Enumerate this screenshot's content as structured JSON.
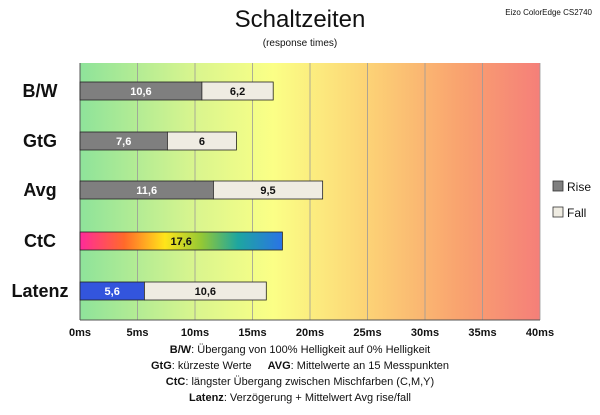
{
  "header": {
    "title": "Schaltzeiten",
    "subtitle": "(response times)",
    "brand": "Eizo ColorEdge CS2740"
  },
  "chart_data": {
    "type": "bar",
    "orientation": "horizontal",
    "stacked": true,
    "title": "Schaltzeiten",
    "subtitle": "(response times)",
    "categories": [
      "B/W",
      "GtG",
      "Avg",
      "CtC",
      "Latenz"
    ],
    "x_ticks": [
      "0ms",
      "5ms",
      "10ms",
      "15ms",
      "20ms",
      "25ms",
      "30ms",
      "35ms",
      "40ms"
    ],
    "xlim": [
      0,
      40
    ],
    "background": "gradient green-yellow-red",
    "legend_position": "right",
    "series": [
      {
        "name": "Rise",
        "values": [
          10.6,
          7.6,
          11.6,
          null,
          null
        ],
        "labels": [
          "10,6",
          "7,6",
          "11,6",
          "",
          ""
        ]
      },
      {
        "name": "Fall",
        "values": [
          6.2,
          6,
          9.5,
          null,
          null
        ],
        "labels": [
          "6,2",
          "6",
          "9,5",
          "",
          ""
        ]
      }
    ],
    "special_bars": [
      {
        "category": "CtC",
        "value": 17.6,
        "label": "17,6",
        "fill": "rainbow gradient"
      },
      {
        "category": "Latenz",
        "segments": [
          {
            "value": 5.6,
            "label": "5,6",
            "color": "#3355dd"
          },
          {
            "value": 10.6,
            "label": "10,6",
            "color": "#efece2"
          }
        ]
      }
    ]
  },
  "legend": [
    {
      "label": "Rise",
      "color": "#7f7f7f"
    },
    {
      "label": "Fall",
      "color": "#efece2"
    }
  ],
  "notes": {
    "line1_key": "B/W",
    "line1_text": ":  Übergang von 100% Helligkeit auf 0% Helligkeit",
    "line2a_key": "GtG",
    "line2a_text": ": kürzeste  Werte",
    "line2b_key": "AVG",
    "line2b_text": ": Mittelwerte  an 15 Messpunkten",
    "line3_key": "CtC",
    "line3_text": ": längster Übergang  zwischen Mischfarben  (C,M,Y)",
    "line4_key": "Latenz",
    "line4_text": ": Verzögerung  + Mittelwert  Avg rise/fall"
  },
  "colors": {
    "rise": "#7f7f7f",
    "fall": "#efece2",
    "latenz_rise": "#3355dd",
    "grid": "#9a9a9a"
  }
}
